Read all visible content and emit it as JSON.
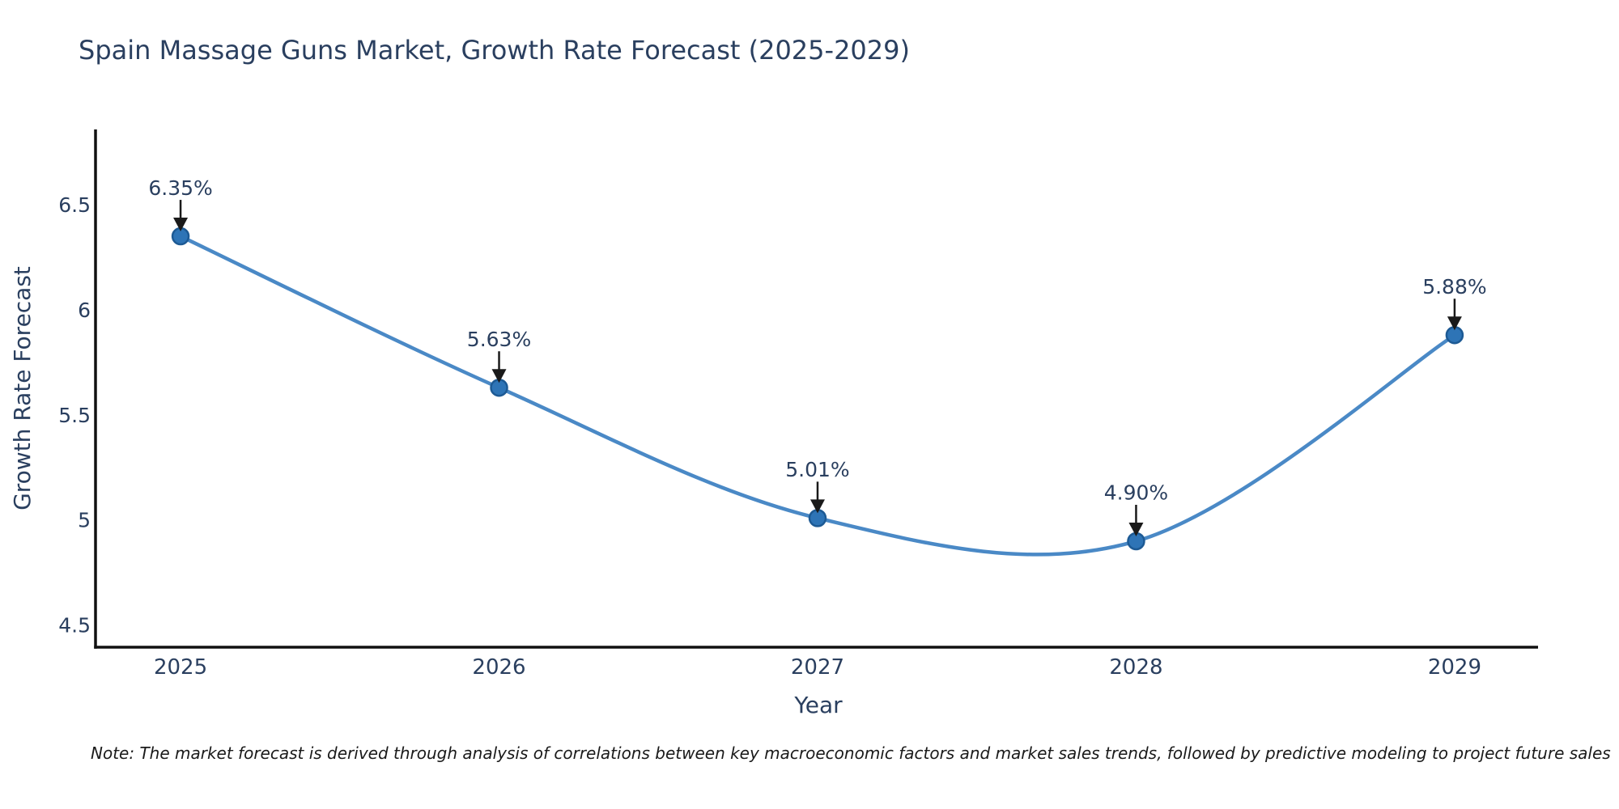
{
  "header": {
    "title": "Spain Massage Guns Market, Growth Rate Forecast (2025-2029)"
  },
  "chart_data": {
    "type": "line",
    "title": "Spain Massage Guns Market, Growth Rate Forecast (2025-2029)",
    "xlabel": "Year",
    "ylabel": "Growth Rate Forecast",
    "categories": [
      "2025",
      "2026",
      "2027",
      "2028",
      "2029"
    ],
    "x": [
      2025,
      2026,
      2027,
      2028,
      2029
    ],
    "values": [
      6.35,
      5.63,
      5.01,
      4.9,
      5.88
    ],
    "point_labels": [
      "6.35%",
      "5.63%",
      "5.01%",
      "4.90%",
      "5.88%"
    ],
    "yticks": [
      4.5,
      5.0,
      5.5,
      6.0,
      6.5
    ],
    "ytick_labels": [
      "4.5",
      "5",
      "5.5",
      "6",
      "6.5"
    ],
    "xlim": [
      2024.733,
      2029.262
    ],
    "ylim": [
      4.396,
      6.858
    ],
    "line_shape": "spline",
    "markers": true,
    "grid": false,
    "legend": false,
    "colors": {
      "line": "#4a89c6",
      "marker_fill": "#2e74b6",
      "marker_edge": "#1d5a94",
      "axis_line": "#111111",
      "text": "#2a3f5f",
      "arrow": "#1a1a1a",
      "background": "#ffffff"
    }
  },
  "footnote": {
    "text": "Note: The market forecast is derived through analysis of correlations between key macroeconomic factors and market sales trends, followed by predictive modeling to project future sales"
  }
}
